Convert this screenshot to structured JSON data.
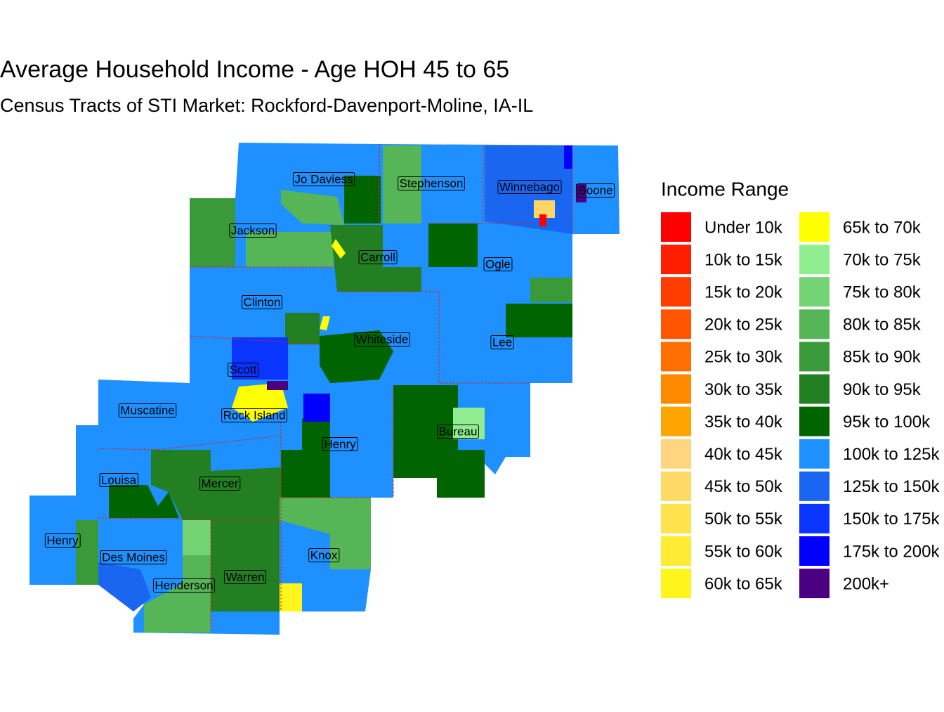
{
  "title": "Average Household Income - Age HOH 45 to 65",
  "subtitle": "Census Tracts of STI Market: Rockford-Davenport-Moline, IA-IL",
  "legend": {
    "title": "Income Range",
    "items": [
      {
        "label": "Under 10k",
        "color": "#ff0000"
      },
      {
        "label": "10k to 15k",
        "color": "#ff1e00"
      },
      {
        "label": "15k to 20k",
        "color": "#ff3c00"
      },
      {
        "label": "20k to 25k",
        "color": "#ff5500"
      },
      {
        "label": "25k to 30k",
        "color": "#ff6e00"
      },
      {
        "label": "30k to 35k",
        "color": "#ff8a00"
      },
      {
        "label": "35k to 40k",
        "color": "#ffa500"
      },
      {
        "label": "40k to 45k",
        "color": "#ffd580"
      },
      {
        "label": "45k to 50k",
        "color": "#ffd966"
      },
      {
        "label": "50k to 55k",
        "color": "#ffe24d"
      },
      {
        "label": "55k to 60k",
        "color": "#ffeb33"
      },
      {
        "label": "60k to 65k",
        "color": "#fff51a"
      },
      {
        "label": "65k to 70k",
        "color": "#ffff00"
      },
      {
        "label": "70k to 75k",
        "color": "#90ee90"
      },
      {
        "label": "75k to 80k",
        "color": "#74d474"
      },
      {
        "label": "80k to 85k",
        "color": "#56b556"
      },
      {
        "label": "85k to 90k",
        "color": "#3a9a3a"
      },
      {
        "label": "90k to 95k",
        "color": "#228022"
      },
      {
        "label": "95k to 100k",
        "color": "#006400"
      },
      {
        "label": "100k to 125k",
        "color": "#1e90ff"
      },
      {
        "label": "125k to 150k",
        "color": "#1a66f0"
      },
      {
        "label": "150k to 175k",
        "color": "#0a34ff"
      },
      {
        "label": "175k to 200k",
        "color": "#0000ff"
      },
      {
        "label": "200k+",
        "color": "#4b0082"
      }
    ]
  },
  "counties": [
    "Jo Daviess",
    "Stephenson",
    "Winnebago",
    "Boone",
    "Jackson",
    "Carroll",
    "Ogle",
    "Clinton",
    "Whiteside",
    "Lee",
    "Scott",
    "Muscatine",
    "Rock Island",
    "Bureau",
    "Henry",
    "Louisa",
    "Mercer",
    "Henry",
    "Des Moines",
    "Knox",
    "Warren",
    "Henderson"
  ]
}
